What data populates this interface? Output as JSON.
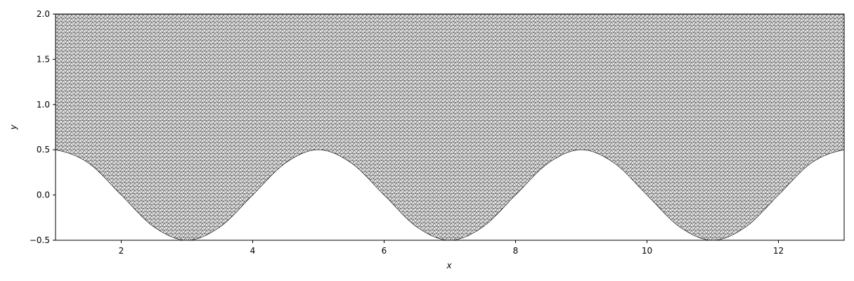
{
  "chart_data": {
    "type": "area",
    "title": "",
    "xlabel": "x",
    "ylabel": "y",
    "xlim": [
      1,
      13
    ],
    "ylim": [
      -0.5,
      2.0
    ],
    "xticks": [
      2,
      4,
      6,
      8,
      10,
      12
    ],
    "yticks": [
      -0.5,
      0.0,
      0.5,
      1.0,
      1.5,
      2.0
    ],
    "xtick_labels": [
      "2",
      "4",
      "6",
      "8",
      "10",
      "12"
    ],
    "ytick_labels": [
      "−0.5",
      "0.0",
      "0.5",
      "1.0",
      "1.5",
      "2.0"
    ],
    "grid": false,
    "legend": "none",
    "region": {
      "description_of_boundary": "lower boundary y = 0.5*cos(pi*(x-1)/2); upper boundary y = 2.0",
      "lower_boundary": {
        "x": [
          1,
          1.5,
          2,
          2.5,
          3,
          3.5,
          4,
          4.5,
          5,
          5.5,
          6,
          6.5,
          7,
          7.5,
          8,
          8.5,
          9,
          9.5,
          10,
          10.5,
          11,
          11.5,
          12,
          12.5,
          13
        ],
        "y": [
          0.5,
          0.354,
          0.0,
          -0.354,
          -0.5,
          -0.354,
          0.0,
          0.354,
          0.5,
          0.354,
          0.0,
          -0.354,
          -0.5,
          -0.354,
          0.0,
          0.354,
          0.5,
          0.354,
          0.0,
          -0.354,
          -0.5,
          -0.354,
          0.0,
          0.354,
          0.5
        ]
      },
      "upper_boundary_y": 2.0,
      "fill_color": "#e6e6e6",
      "mesh_color": "#000000",
      "mesh": "triangular"
    }
  }
}
